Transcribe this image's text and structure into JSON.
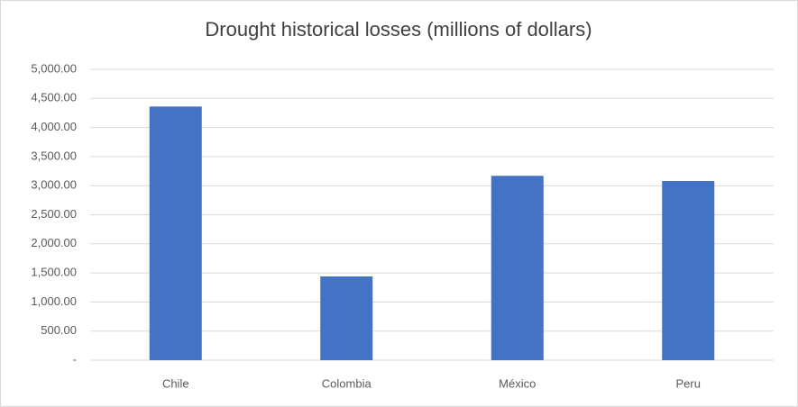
{
  "chart_data": {
    "type": "bar",
    "title": "Drought historical losses (millions of dollars)",
    "categories": [
      "Chile",
      "Colombia",
      "México",
      "Peru"
    ],
    "values": [
      4360,
      1440,
      3170,
      3080
    ],
    "color": "#4472c4",
    "ylim": [
      0,
      5000
    ],
    "yticks": [
      {
        "value": 0,
        "label": "-"
      },
      {
        "value": 500,
        "label": "500.00"
      },
      {
        "value": 1000,
        "label": "1,000.00"
      },
      {
        "value": 1500,
        "label": "1,500.00"
      },
      {
        "value": 2000,
        "label": "2,000.00"
      },
      {
        "value": 2500,
        "label": "2,500.00"
      },
      {
        "value": 3000,
        "label": "3,000.00"
      },
      {
        "value": 3500,
        "label": "3,500.00"
      },
      {
        "value": 4000,
        "label": "4,000.00"
      },
      {
        "value": 4500,
        "label": "4,500.00"
      },
      {
        "value": 5000,
        "label": "5,000.00"
      }
    ],
    "grid": true
  }
}
